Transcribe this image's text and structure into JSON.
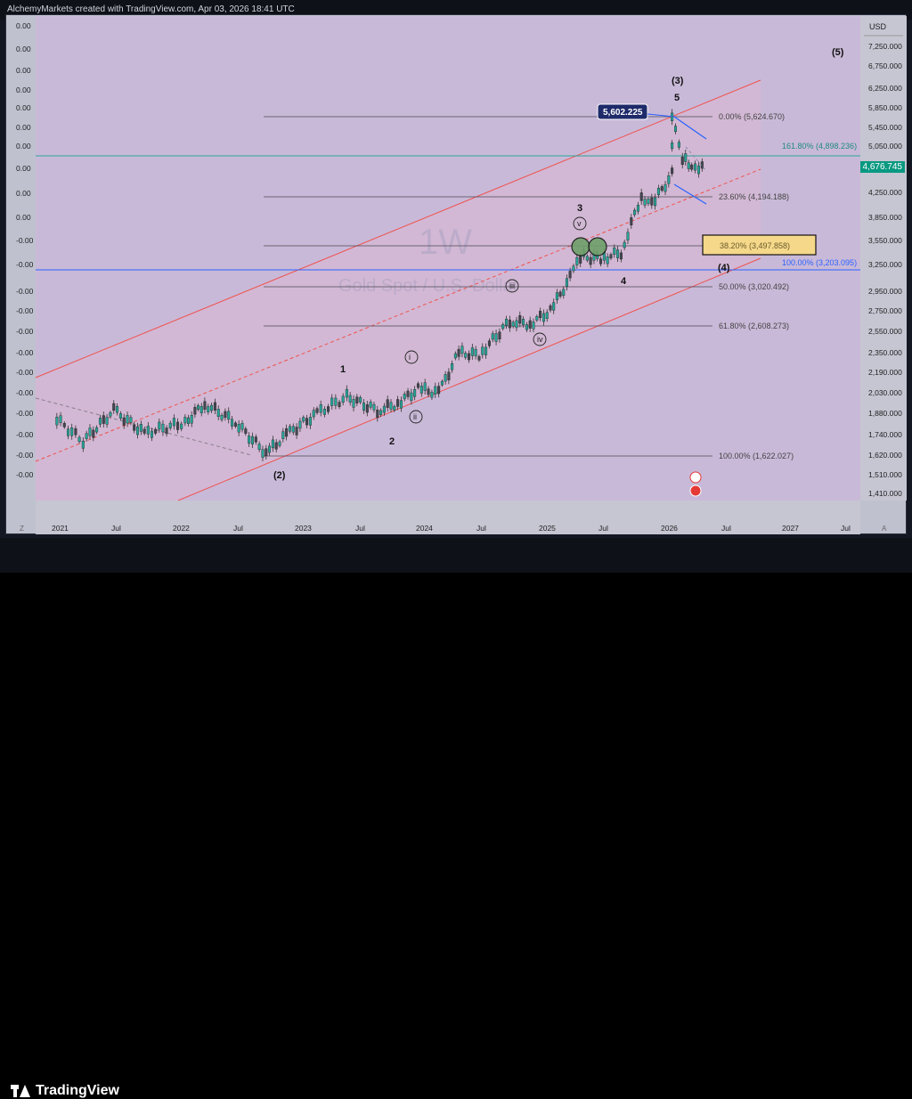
{
  "header": {
    "caption": "AlchemyMarkets created with TradingView.com, Apr 03, 2026 18:41 UTC"
  },
  "watermark": {
    "timeframe": "1W",
    "symbol": "Gold Spot / U.S. Dollar"
  },
  "footer": {
    "brand": "TradingView"
  },
  "axis": {
    "currency": "USD",
    "right_ticks": [
      "7,250.000",
      "6,750.000",
      "6,250.000",
      "5,850.000",
      "5,450.000",
      "5,050.000",
      "4,650.000",
      "4,250.000",
      "3,850.000",
      "3,550.000",
      "3,250.000",
      "2,950.000",
      "2,750.000",
      "2,550.000",
      "2,350.000",
      "2,190.000",
      "2,030.000",
      "1,880.000",
      "1,740.000",
      "1,620.000",
      "1,510.000",
      "1,410.000"
    ],
    "left_ticks": [
      "0.00",
      "0.00",
      "0.00",
      "0.00",
      "0.00",
      "0.00",
      "0.00",
      "0.00",
      "0.00",
      "0.00",
      "-0.00",
      "-0.00",
      "-0.00",
      "-0.00",
      "-0.00",
      "-0.00",
      "-0.00",
      "-0.00",
      "-0.00",
      "-0.00",
      "-0.00",
      "-0.00"
    ],
    "time_ticks": [
      "2021",
      "Jul",
      "2022",
      "Jul",
      "2023",
      "Jul",
      "2024",
      "Jul",
      "2025",
      "Jul",
      "2026",
      "Jul",
      "2027",
      "Jul"
    ],
    "corner_left": "Z",
    "corner_right": "A"
  },
  "current_price": "4,676.745",
  "peak_callout": "5,602.225",
  "fib_labels": [
    "0.00% (5,624.670)",
    "161.80% (4,898.236)",
    "23.60% (4,194.188)",
    "38.20% (3,497.858)",
    "100.00% (3,203.095)",
    "50.00% (3,020.492)",
    "61.80% (2,608.273)",
    "100.00% (1,622.027)"
  ],
  "wave_labels": [
    "(5)",
    "(3)",
    "5",
    "3",
    "v",
    "(4)",
    "4",
    "iii",
    "iv",
    "i",
    "1",
    "ii",
    "2",
    "(2)"
  ],
  "colors": {
    "channel": "#ef5350",
    "fib_line": "#4a4a55",
    "blue_line": "#2962ff",
    "teal_line": "#26a69a",
    "up": "#26a69a",
    "down": "#434651",
    "highlight": "#f5d88a"
  },
  "chart_data": {
    "type": "candlestick",
    "title": "",
    "xlabel": "",
    "ylabel": "USD",
    "x_range": [
      "2020-12",
      "2027-09"
    ],
    "ylim": [
      1350,
      7600
    ],
    "series": [
      {
        "name": "",
        "x": [
          "2020-12",
          "2021-03",
          "2021-06",
          "2021-09",
          "2022-01",
          "2022-03",
          "2022-06",
          "2022-09",
          "2022-11",
          "2023-02",
          "2023-05",
          "2023-08",
          "2023-10",
          "2023-12",
          "2024-02",
          "2024-04",
          "2024-06",
          "2024-09",
          "2024-11",
          "2025-01",
          "2025-03",
          "2025-04",
          "2025-06",
          "2025-08",
          "2025-10",
          "2025-11",
          "2026-01",
          "2026-01",
          "2026-02",
          "2026-03",
          "2026-04"
        ],
        "values": [
          1860,
          1700,
          1900,
          1750,
          1820,
          1950,
          1820,
          1630,
          1740,
          1880,
          2000,
          1900,
          1950,
          2060,
          2030,
          2350,
          2330,
          2650,
          2620,
          2750,
          3100,
          3350,
          3320,
          3400,
          4200,
          4050,
          4550,
          5600,
          4850,
          4700,
          4676
        ]
      }
    ],
    "fibonacci_levels": [
      {
        "label": "0.00%",
        "price": 5624.67
      },
      {
        "label": "161.80%",
        "price": 4898.236
      },
      {
        "label": "23.60%",
        "price": 4194.188
      },
      {
        "label": "38.20%",
        "price": 3497.858
      },
      {
        "label": "100.00%",
        "price": 3203.095
      },
      {
        "label": "50.00%",
        "price": 3020.492
      },
      {
        "label": "61.80%",
        "price": 2608.273
      },
      {
        "label": "100.00%",
        "price": 1622.027
      }
    ],
    "grid": false,
    "legend": "none"
  }
}
